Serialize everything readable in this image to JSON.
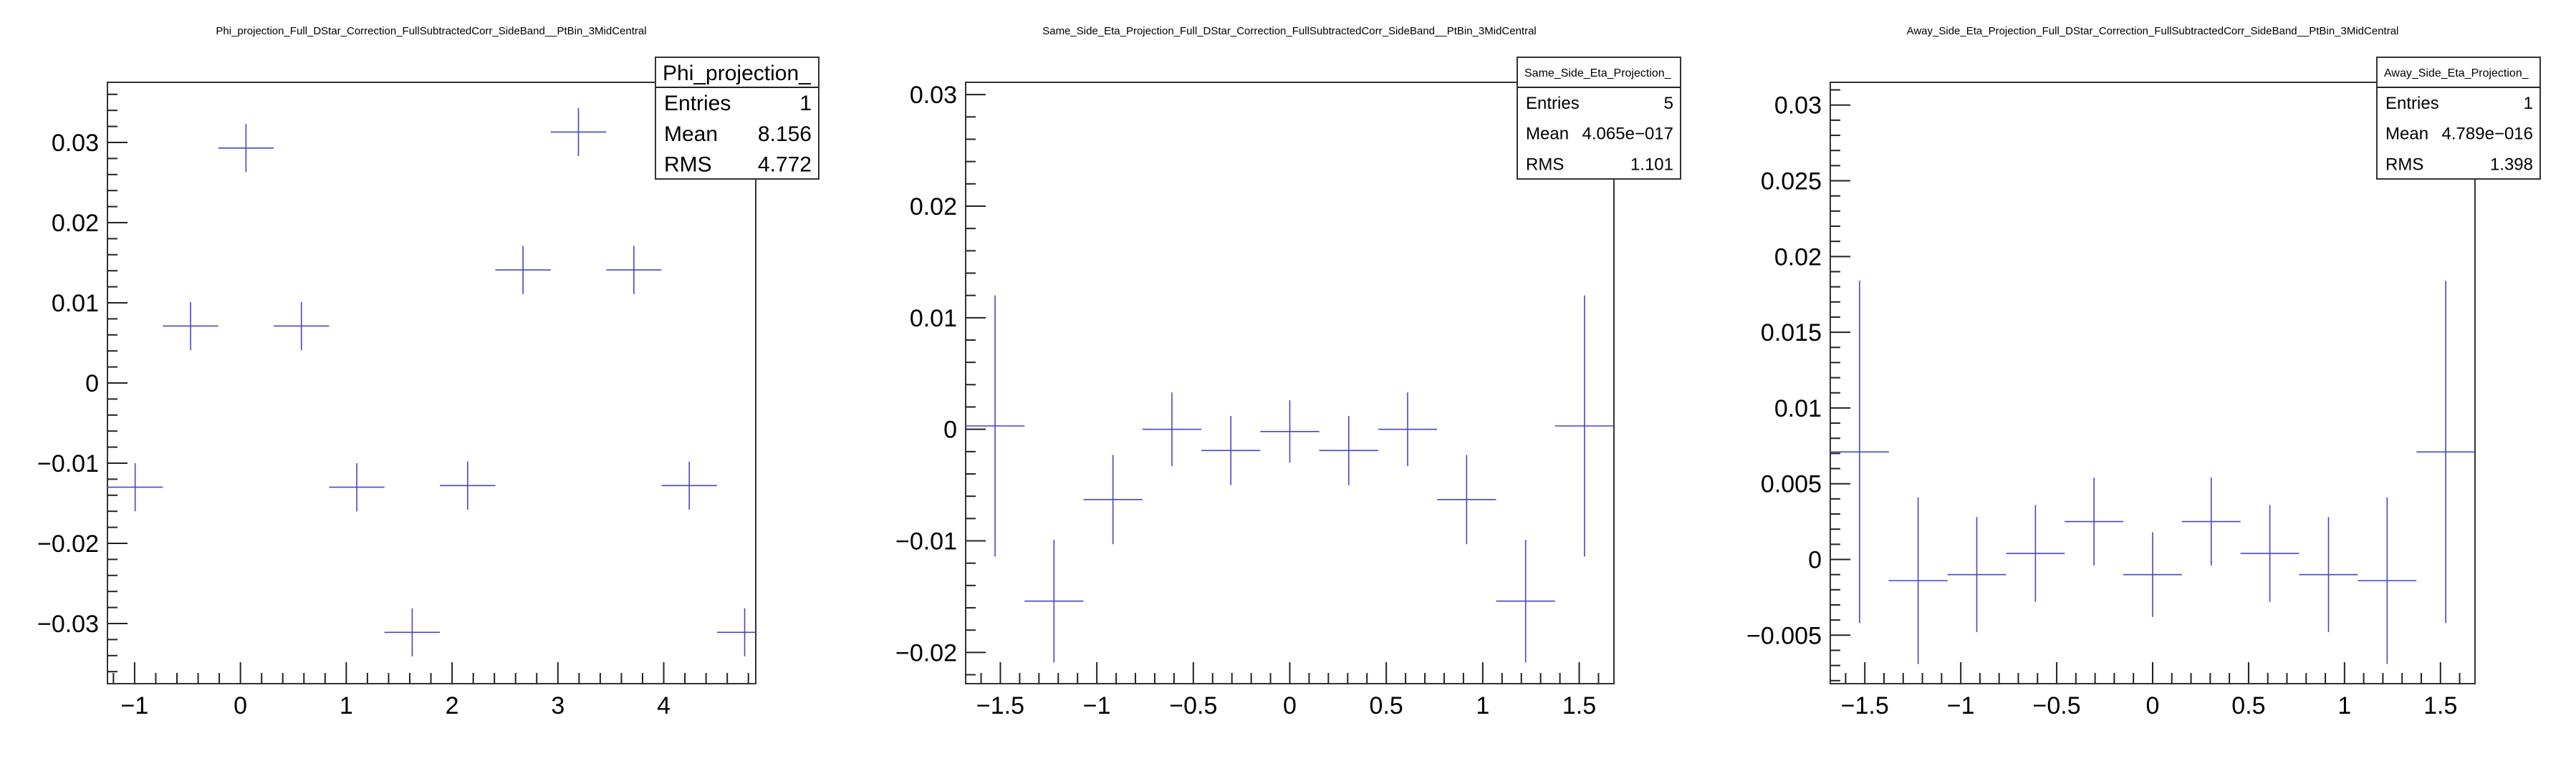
{
  "chart_data": [
    {
      "type": "scatter",
      "title": "Phi_projection_Full_DStar_Correction_FullSubtractedCorr_SideBand__PtBin_3MidCentral",
      "xlabel": "",
      "ylabel": "",
      "xlim": [
        -1.2566,
        4.8695
      ],
      "ylim": [
        -0.0375,
        0.0375
      ],
      "x_ticks": [
        -1,
        0,
        1,
        2,
        3,
        4
      ],
      "y_ticks": [
        -0.03,
        -0.02,
        -0.01,
        0,
        0.01,
        0.02,
        0.03
      ],
      "x_tick_labels": [
        "−1",
        "0",
        "1",
        "2",
        "3",
        "4"
      ],
      "y_tick_labels": [
        "−0.03",
        "−0.02",
        "−0.01",
        "0",
        "0.01",
        "0.02",
        "0.03"
      ],
      "series": [
        {
          "x": [
            -0.9948,
            -0.4712,
            0.0524,
            0.576,
            1.0996,
            1.6232,
            2.1468,
            2.6704,
            3.194,
            3.7176,
            4.2412,
            4.7648
          ],
          "x_err": 0.2618,
          "y": [
            -0.013,
            0.0071,
            0.0293,
            0.0071,
            -0.013,
            -0.0311,
            -0.0128,
            0.0141,
            0.0313,
            0.0141,
            -0.0128,
            -0.0311
          ],
          "y_err": [
            0.003,
            0.003,
            0.003,
            0.003,
            0.003,
            0.003,
            0.003,
            0.003,
            0.003,
            0.003,
            0.003,
            0.003
          ]
        }
      ],
      "stats": {
        "name": "Phi_projection_",
        "rows": [
          {
            "label": "Entries",
            "value": "1"
          },
          {
            "label": "Mean",
            "value": "8.156"
          },
          {
            "label": "RMS",
            "value": "4.772"
          }
        ]
      },
      "grid": false,
      "line_color": "#4646c8"
    },
    {
      "type": "scatter",
      "title": "Same_Side_Eta_Projection_Full_DStar_Correction_FullSubtractedCorr_SideBand__PtBin_3MidCentral",
      "xlabel": "",
      "ylabel": "",
      "xlim": [
        -1.68,
        1.68
      ],
      "ylim": [
        -0.0228,
        0.0311
      ],
      "x_ticks": [
        -1.5,
        -1,
        -0.5,
        0,
        0.5,
        1,
        1.5
      ],
      "y_ticks": [
        -0.02,
        -0.01,
        0,
        0.01,
        0.02,
        0.03
      ],
      "x_tick_labels": [
        "−1.5",
        "−1",
        "−0.5",
        "0",
        "0.5",
        "1",
        "1.5"
      ],
      "y_tick_labels": [
        "−0.02",
        "−0.01",
        "0",
        "0.01",
        "0.02",
        "0.03"
      ],
      "series": [
        {
          "x": [
            -1.5275,
            -1.2222,
            -0.9165,
            -0.6108,
            -0.3055,
            0.0,
            0.3055,
            0.6108,
            0.9165,
            1.2222,
            1.5275
          ],
          "x_err": 0.1528,
          "y": [
            0.0003,
            -0.0154,
            -0.0063,
            0.0,
            -0.0019,
            -0.0002,
            -0.0019,
            0.0,
            -0.0063,
            -0.0154,
            0.0003
          ],
          "y_err": [
            0.0117,
            0.0055,
            0.004,
            0.0033,
            0.0031,
            0.0028,
            0.0031,
            0.0033,
            0.004,
            0.0055,
            0.0117
          ]
        }
      ],
      "stats": {
        "name": "Same_Side_Eta_Projection_",
        "rows": [
          {
            "label": "Entries",
            "value": "5"
          },
          {
            "label": "Mean",
            "value": "4.065e−017"
          },
          {
            "label": "RMS",
            "value": "1.101"
          }
        ]
      },
      "grid": false,
      "line_color": "#4646c8"
    },
    {
      "type": "scatter",
      "title": "Away_Side_Eta_Projection_Full_DStar_Correction_FullSubtractedCorr_SideBand__PtBin_3MidCentral",
      "xlabel": "",
      "ylabel": "",
      "xlim": [
        -1.68,
        1.68
      ],
      "ylim": [
        -0.0082,
        0.0315
      ],
      "x_ticks": [
        -1.5,
        -1,
        -0.5,
        0,
        0.5,
        1,
        1.5
      ],
      "y_ticks": [
        -0.005,
        0,
        0.005,
        0.01,
        0.015,
        0.02,
        0.025,
        0.03
      ],
      "x_tick_labels": [
        "−1.5",
        "−1",
        "−0.5",
        "0",
        "0.5",
        "1",
        "1.5"
      ],
      "y_tick_labels": [
        "−0.005",
        "0",
        "0.005",
        "0.01",
        "0.015",
        "0.02",
        "0.025",
        "0.03"
      ],
      "series": [
        {
          "x": [
            -1.5275,
            -1.2222,
            -0.9165,
            -0.6108,
            -0.3055,
            0.0,
            0.3055,
            0.6108,
            0.9165,
            1.2222,
            1.5275
          ],
          "x_err": 0.1528,
          "y": [
            0.0071,
            -0.0014,
            -0.001,
            0.0004,
            0.0025,
            -0.001,
            0.0025,
            0.0004,
            -0.001,
            -0.0014,
            0.0071
          ],
          "y_err": [
            0.0113,
            0.0055,
            0.0038,
            0.0032,
            0.0029,
            0.0028,
            0.0029,
            0.0032,
            0.0038,
            0.0055,
            0.0113
          ]
        }
      ],
      "stats": {
        "name": "Away_Side_Eta_Projection_",
        "rows": [
          {
            "label": "Entries",
            "value": "1"
          },
          {
            "label": "Mean",
            "value": "4.789e−016"
          },
          {
            "label": "RMS",
            "value": "1.398"
          }
        ]
      },
      "grid": false,
      "line_color": "#4646c8"
    }
  ]
}
